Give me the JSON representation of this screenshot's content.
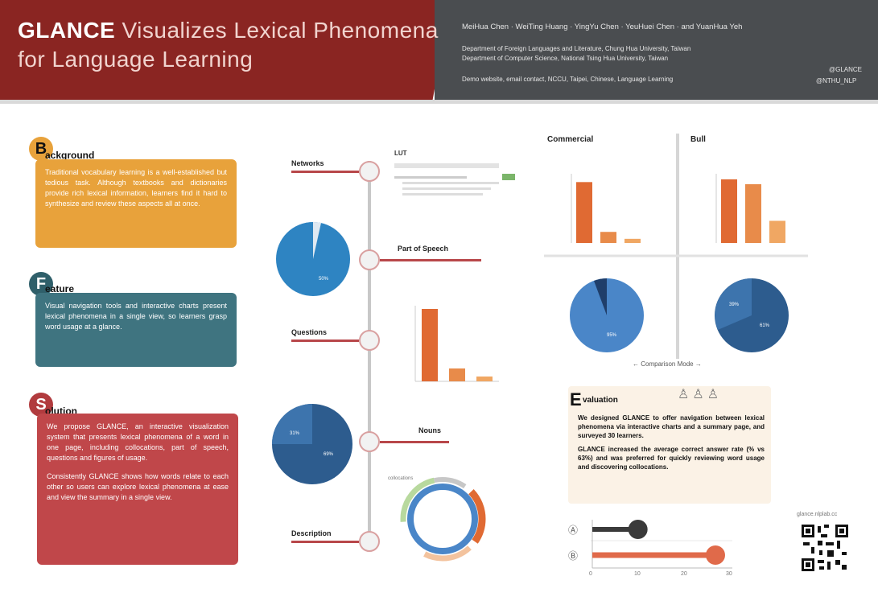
{
  "header": {
    "title_bold": "GLANCE",
    "title_rest_1": "Visualizes Lexical Phenomena",
    "title_line2": "for Language Learning",
    "authors": "MeiHua Chen · WeiTing Huang · YingYu Chen · YeuHuei Chen · and YuanHua Yeh",
    "affiliation_1": "Department of Foreign Languages and Literature, Chung Hua University, Taiwan",
    "affiliation_2": "Department of Computer Science, National Tsing Hua University, Taiwan",
    "contact": "Demo website, email contact, NCCU, Taipei, Chinese, Language Learning",
    "handle_1": "@GLANCE",
    "handle_2": "@NTHU_NLP"
  },
  "left_cards": [
    {
      "tag": "B",
      "heading": "ackground",
      "color": "#e8a23b",
      "tag_color": "#e8a23b",
      "body": "Traditional vocabulary learning is a well-established but tedious task. Although textbooks and dictionaries provide rich lexical information, learners find it hard to synthesize and review these aspects all at once."
    },
    {
      "tag": "F",
      "heading": "eature",
      "color": "#3f7480",
      "tag_color": "#2f5f6a",
      "body": "Visual navigation tools and interactive charts present lexical phenomena in a single view, so learners grasp word usage at a glance."
    },
    {
      "tag": "S",
      "heading": "olution",
      "color": "#c0474a",
      "tag_color": "#b13b3e",
      "body": "We propose GLANCE, an interactive visualization system that presents lexical phenomena of a word in one page, including collocations, part of speech, questions and figures of usage.",
      "body2": "Consistently GLANCE shows how words relate to each other so users can explore lexical phenomena at ease and view the summary in a single view."
    }
  ],
  "timeline": {
    "stops": [
      {
        "label": "Networks"
      },
      {
        "label": "Part of Speech"
      },
      {
        "label": "Questions"
      },
      {
        "label": "Nouns"
      },
      {
        "label": "Description"
      }
    ],
    "lut_title": "LUT",
    "pie_labels": [
      "50%",
      "69%",
      "31%"
    ],
    "donut_caption": "collocations"
  },
  "comparison": {
    "panels": [
      {
        "title": "Commercial",
        "values": [
          88,
          16,
          6
        ]
      },
      {
        "title": "Bull",
        "values": [
          92,
          85,
          32
        ]
      }
    ],
    "ylim": [
      0,
      100
    ],
    "mode_label": "Comparison Mode",
    "pie_labels": [
      "95%",
      "61%",
      "39%"
    ]
  },
  "evaluation": {
    "tag": "E",
    "heading": "valuation",
    "body": "We designed GLANCE to offer navigation between lexical phenomena via interactive charts and a summary page, and surveyed 30 learners.",
    "body2": "GLANCE increased the average correct answer rate (% vs 63%) and was preferred for quickly reviewing word usage and discovering collocations."
  },
  "results": {
    "bars": [
      {
        "label": "Ⓐ",
        "value": 10
      },
      {
        "label": "Ⓑ",
        "value": 27
      }
    ],
    "ticks": [
      "0",
      "10",
      "20",
      "30"
    ],
    "xlim": [
      0,
      30
    ]
  },
  "qr_caption": "glance.nlplab.cc"
}
